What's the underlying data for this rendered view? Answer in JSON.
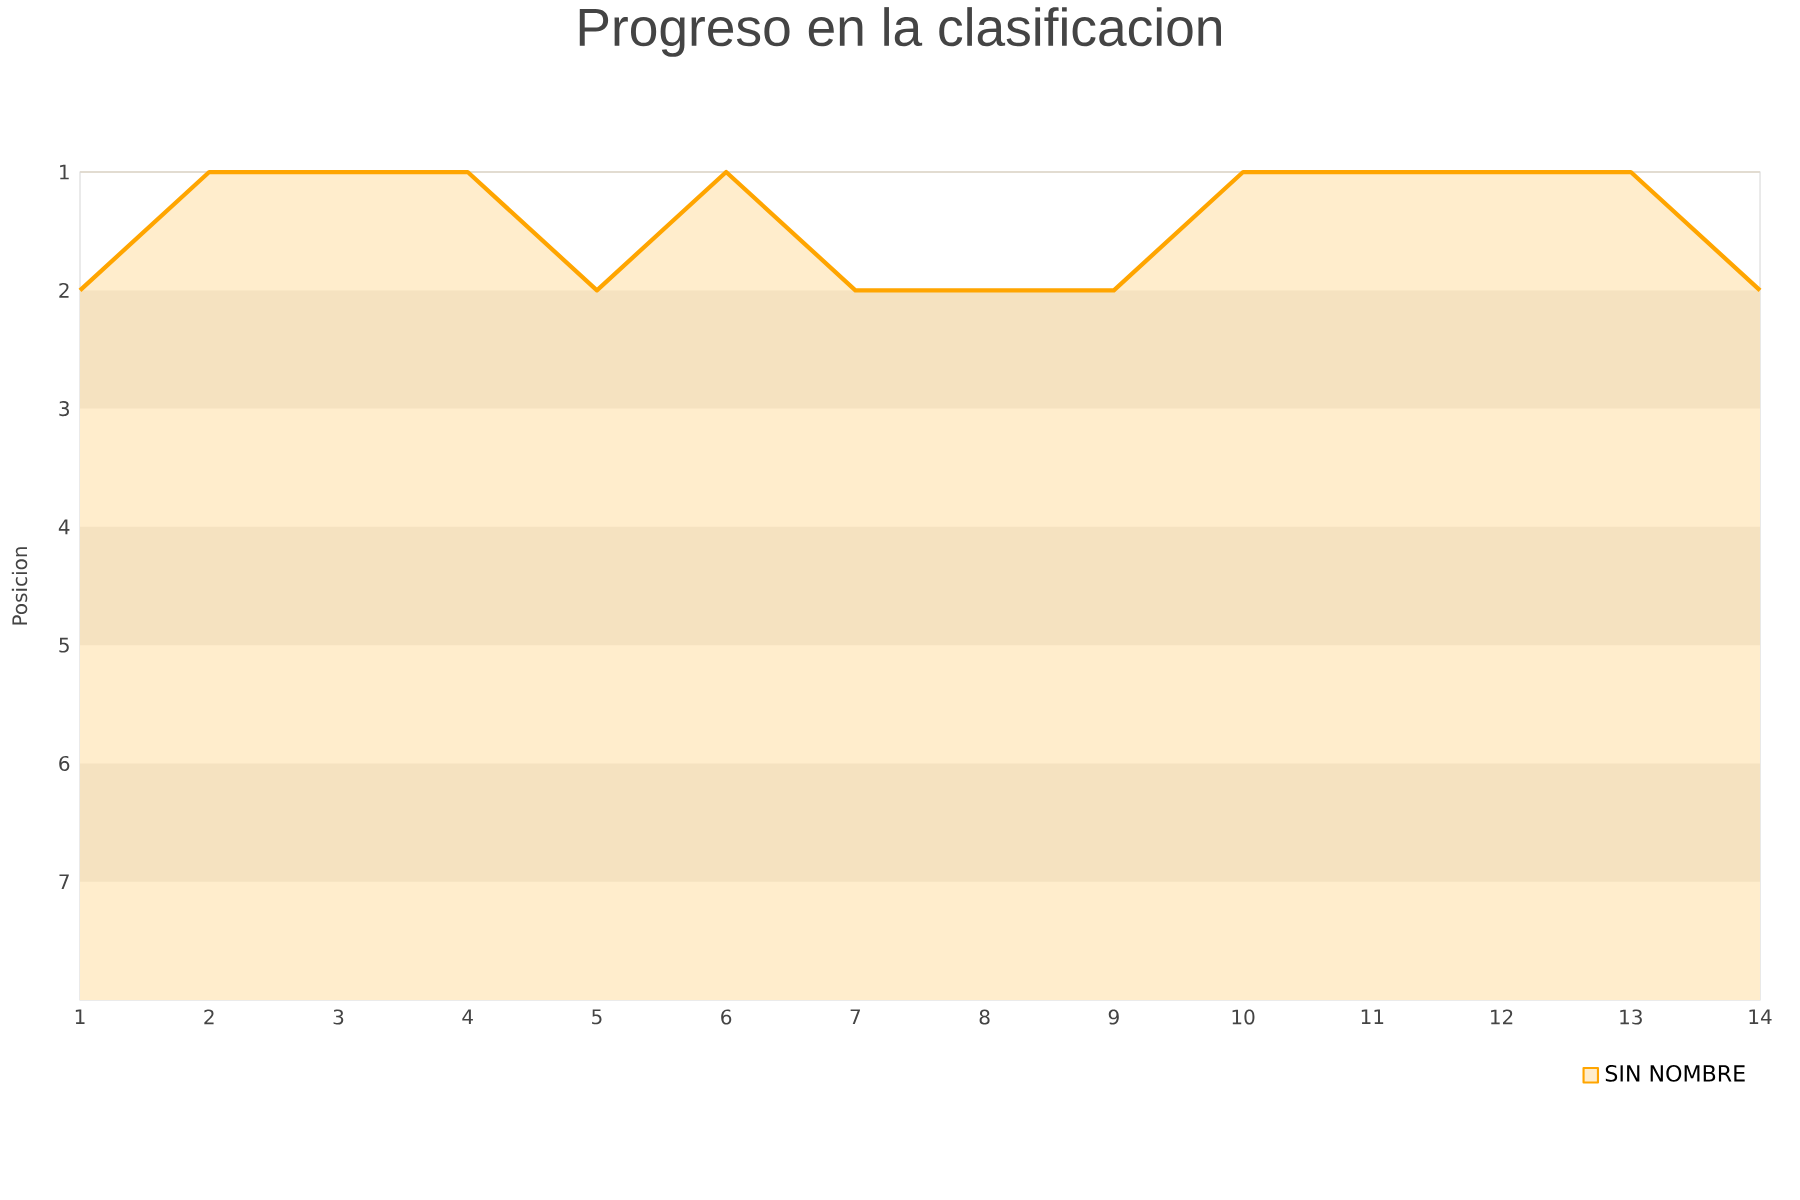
{
  "chart_data": {
    "type": "area",
    "title": "Progreso en la clasificacion",
    "ylabel": "Posicion",
    "x": [
      1,
      2,
      3,
      4,
      5,
      6,
      7,
      8,
      9,
      10,
      11,
      12,
      13,
      14
    ],
    "series": [
      {
        "name": "SIN NOMBRE",
        "color": "#ffa500",
        "values": [
          2,
          1,
          1,
          1,
          2,
          1,
          2,
          2,
          2,
          1,
          1,
          1,
          1,
          2
        ]
      }
    ],
    "xlim": [
      1,
      14
    ],
    "xticks": [
      1,
      2,
      3,
      4,
      5,
      6,
      7,
      8,
      9,
      10,
      11,
      12,
      13,
      14
    ],
    "ylim": [
      8,
      1
    ],
    "yticks": [
      1,
      2,
      3,
      4,
      5,
      6,
      7
    ],
    "bands": [
      {
        "axis": "y",
        "from": 2,
        "to": 3,
        "color": "#f5e2c0"
      },
      {
        "axis": "y",
        "from": 4,
        "to": 5,
        "color": "#f5e2c0"
      },
      {
        "axis": "y",
        "from": 6,
        "to": 7,
        "color": "#f5e2c0"
      }
    ],
    "grid": "y",
    "legend": "bottom right"
  }
}
